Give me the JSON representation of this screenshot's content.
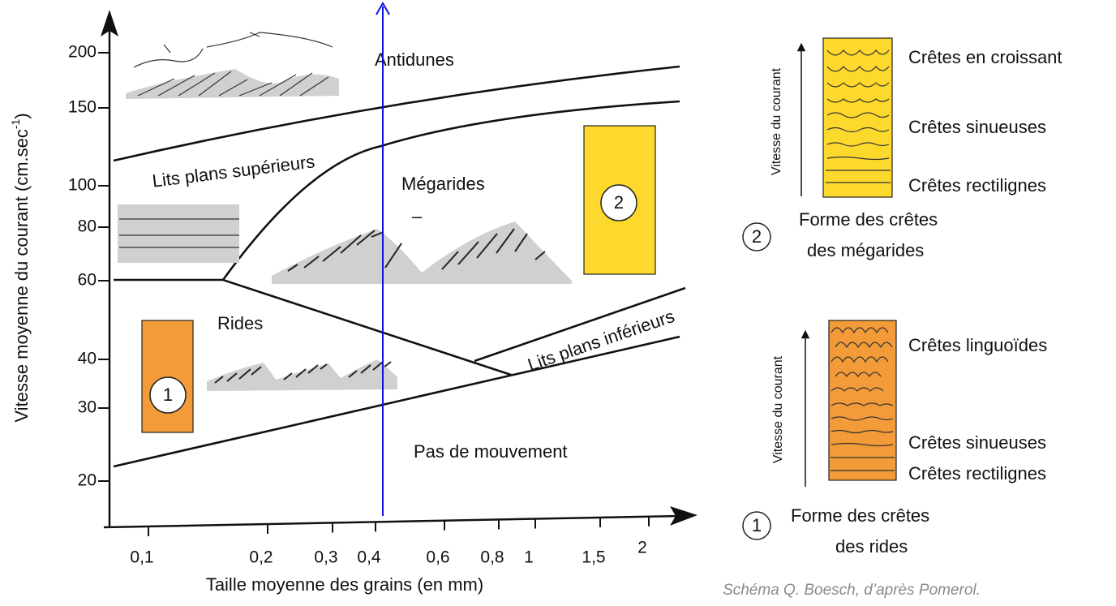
{
  "axes": {
    "y_title": {
      "text": "Vitesse moyenne du courant (cm.sec",
      "superscript": "-1",
      "close": ")"
    },
    "x_title": "Taille moyenne des grains (en mm)",
    "y_ticks": [
      "200",
      "150",
      "100",
      "80",
      "60",
      "40",
      "30",
      "20"
    ],
    "x_ticks": [
      "0,1",
      "0,2",
      "0,3",
      "0,4",
      "0,6",
      "0,8",
      "1",
      "1,5",
      "2"
    ]
  },
  "regions": {
    "antidunes": "Antidunes",
    "upper_plane_beds": "Lits plans supérieurs",
    "megaripples": "Mégarides",
    "megaripples_mark": "–",
    "ripples": "Rides",
    "lower_plane_beds": "Lits plans inférieurs",
    "no_movement": "Pas de mouvement"
  },
  "markers": {
    "ripples": "1",
    "megaripples": "2"
  },
  "legend": {
    "megaripples": {
      "axis": "Vitesse du courant",
      "caption": [
        "Forme des crêtes",
        "des mégarides"
      ],
      "crests": [
        "Crêtes en croissant",
        "Crêtes sinueuses",
        "Crêtes rectilignes"
      ]
    },
    "ripples": {
      "axis": "Vitesse du courant",
      "caption": [
        "Forme des crêtes",
        "des rides"
      ],
      "crests": [
        "Crêtes linguoïdes",
        "Crêtes sinueuses",
        "Crêtes rectilignes"
      ]
    }
  },
  "credit": "Schéma Q. Boesch, d’après Pomerol."
}
